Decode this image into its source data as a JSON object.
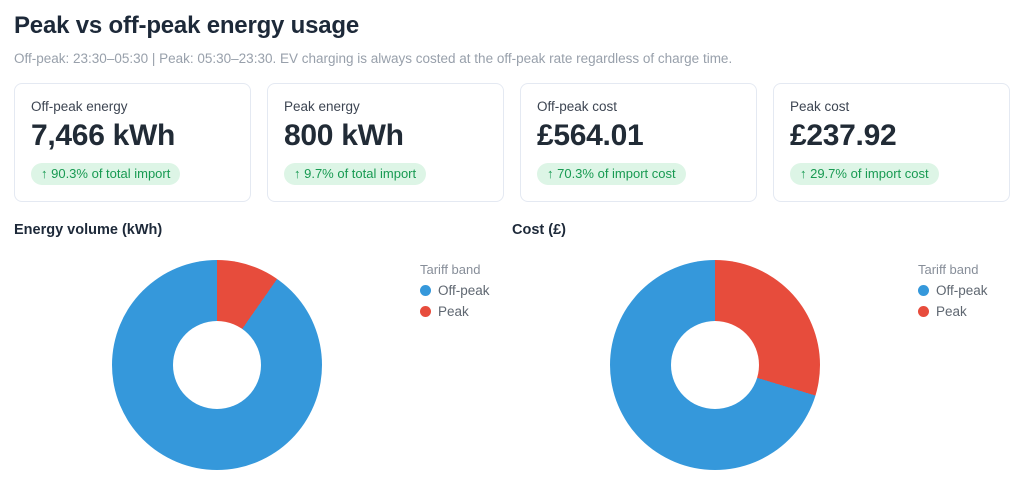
{
  "page": {
    "title": "Peak vs off-peak energy usage",
    "subtitle": "Off-peak: 23:30–05:30 | Peak: 05:30–23:30. EV charging is always costed at the off-peak rate regardless of charge time."
  },
  "colors": {
    "off_peak_blue": "#3598db",
    "peak_red": "#e74c3c",
    "badge_bg": "#ddf5e6",
    "badge_text": "#189a52"
  },
  "stat_cards": [
    {
      "label": "Off-peak energy",
      "value": "7,466 kWh",
      "badge": "↑ 90.3% of total import"
    },
    {
      "label": "Peak energy",
      "value": "800 kWh",
      "badge": "↑ 9.7% of total import"
    },
    {
      "label": "Off-peak cost",
      "value": "£564.01",
      "badge": "↑ 70.3% of import cost"
    },
    {
      "label": "Peak cost",
      "value": "£237.92",
      "badge": "↑ 29.7% of import cost"
    }
  ],
  "chart_data": [
    {
      "type": "pie",
      "donut": true,
      "title": "Energy volume (kWh)",
      "legend_title": "Tariff band",
      "legend_position": "right",
      "categories": [
        "Off-peak",
        "Peak"
      ],
      "values": [
        7466,
        800
      ],
      "percentages": [
        90.3,
        9.7
      ],
      "colors": [
        "#3598db",
        "#e74c3c"
      ],
      "draw_order": [
        1,
        0
      ]
    },
    {
      "type": "pie",
      "donut": true,
      "title": "Cost (£)",
      "legend_title": "Tariff band",
      "legend_position": "right",
      "categories": [
        "Off-peak",
        "Peak"
      ],
      "values": [
        564.01,
        237.92
      ],
      "percentages": [
        70.3,
        29.7
      ],
      "colors": [
        "#3598db",
        "#e74c3c"
      ],
      "draw_order": [
        1,
        0
      ]
    }
  ]
}
